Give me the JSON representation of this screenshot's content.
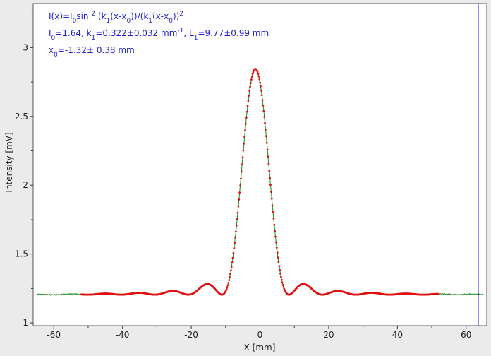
{
  "chart_data": {
    "type": "scatter",
    "title": "",
    "xlabel": "X [mm]",
    "ylabel": "Intensity [mV]",
    "xlim": [
      -66,
      66
    ],
    "ylim": [
      0.98,
      3.32
    ],
    "x_ticks": [
      -60,
      -40,
      -20,
      0,
      20,
      40,
      60
    ],
    "y_ticks": [
      1,
      1.5,
      2,
      2.5,
      3
    ],
    "x_tick_labels": [
      "-60",
      "-40",
      "-20",
      "0",
      "20",
      "40",
      "60"
    ],
    "y_tick_labels": [
      "1",
      "1.5",
      "2",
      "2.5",
      "3"
    ],
    "grid": false,
    "marker_line_x": 63.5,
    "fit_model": {
      "baseline": 1.205,
      "I0": 1.64,
      "k1": 0.322,
      "x0": -1.32
    },
    "series": [
      {
        "color": "#1e8a1e",
        "style": "line",
        "x": [
          -65,
          -55,
          -45,
          -35,
          -25,
          -15,
          -10,
          -5,
          -1.3,
          3,
          8,
          12,
          22,
          32,
          42,
          52,
          60,
          65
        ],
        "y": [
          1.2,
          1.21,
          1.21,
          1.21,
          1.23,
          1.27,
          1.22,
          2.05,
          2.83,
          2.4,
          1.25,
          1.27,
          1.23,
          1.21,
          1.21,
          1.21,
          1.2,
          1.2
        ]
      },
      {
        "color": "#e01010",
        "style": "points",
        "x": [
          -52,
          -45,
          -36,
          -26,
          -21,
          -16,
          -11.5,
          -8,
          -5,
          -3,
          -1.3,
          1,
          3,
          6,
          8.8,
          13,
          18,
          23,
          32,
          42,
          52
        ],
        "y": [
          1.21,
          1.21,
          1.22,
          1.24,
          1.21,
          1.29,
          1.21,
          1.45,
          2.18,
          2.64,
          2.85,
          2.68,
          2.25,
          1.52,
          1.21,
          1.29,
          1.21,
          1.24,
          1.22,
          1.21,
          1.21
        ]
      }
    ],
    "annotations": {
      "line1": {
        "a": "I(x)=I",
        "b": "0",
        "c": "sin ",
        "d": "2",
        "e": " (k",
        "f": "1",
        "g": "(x-x",
        "h": "0",
        "i": "))/(k",
        "j": "1",
        "k": "(x-x",
        "l": "0",
        "m": "))",
        "n": "2"
      },
      "line2": {
        "a": "I",
        "b": "0",
        "c": "=1.64,  k",
        "d": "1",
        "e": "=0.322±0.032 mm",
        "f": "-1",
        "g": ",   L",
        "h": "1",
        "i": "=9.77±0.99 mm"
      },
      "line3": {
        "a": "x",
        "b": "0",
        "c": "=-1.32±  0.38 mm"
      }
    }
  }
}
